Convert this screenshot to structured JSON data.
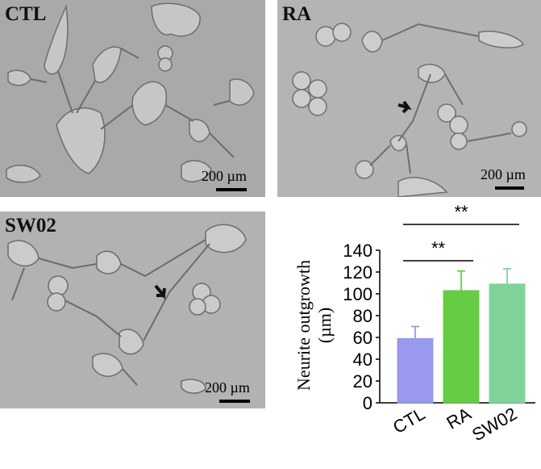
{
  "panels": [
    {
      "id": "ctl",
      "label": "CTL",
      "scale_bar": "200 µm"
    },
    {
      "id": "ra",
      "label": "RA",
      "scale_bar": "200 µm"
    },
    {
      "id": "sw02",
      "label": "SW02",
      "scale_bar": "200 µm"
    }
  ],
  "chart_data": {
    "type": "bar",
    "categories": [
      "CTL",
      "RA",
      "SW02"
    ],
    "values": [
      59,
      103,
      109
    ],
    "errors": [
      11,
      18,
      14
    ],
    "colors": [
      "#9999ee",
      "#66cc44",
      "#7fd39a"
    ],
    "ylabel_line1": "Neurite outgrowth",
    "ylabel_line2": "(µm)",
    "ylim": [
      0,
      140
    ],
    "yticks": [
      0,
      20,
      40,
      60,
      80,
      100,
      120,
      140
    ],
    "significance": [
      {
        "from": "CTL",
        "to": "RA",
        "label": "**"
      },
      {
        "from": "CTL",
        "to": "SW02",
        "label": "**"
      }
    ]
  }
}
